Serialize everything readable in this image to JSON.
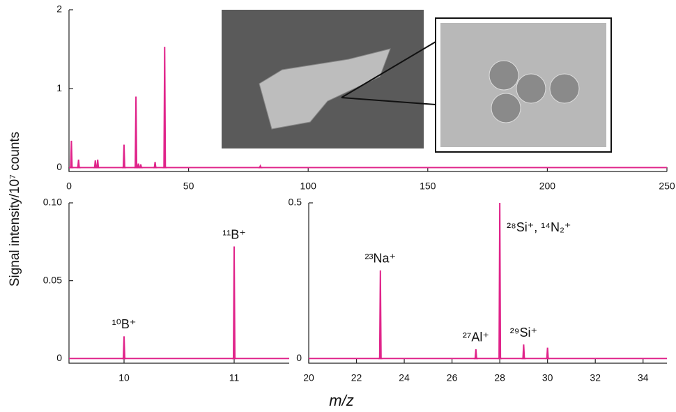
{
  "y_label": "Signal intensity/10⁷ counts",
  "x_label": "m/z",
  "chart_data": [
    {
      "type": "spectrum",
      "color": "#e0248a",
      "x": [
        1,
        4,
        11,
        12,
        23,
        28,
        29,
        30,
        36,
        40,
        80
      ],
      "values": [
        0.34,
        0.1,
        0.09,
        0.1,
        0.29,
        0.9,
        0.05,
        0.04,
        0.07,
        1.53,
        0.02
      ],
      "xlim": [
        0,
        250
      ],
      "xticks": [
        0,
        50,
        100,
        150,
        200,
        250
      ],
      "ylim": [
        -0.05,
        2
      ],
      "yticks": [
        0,
        1,
        2
      ]
    },
    {
      "type": "spectrum",
      "color": "#e0248a",
      "x": [
        10,
        11
      ],
      "values": [
        0.0143,
        0.072
      ],
      "peak_labels": [
        "¹⁰B⁺",
        "¹¹B⁺"
      ],
      "xlim": [
        9.5,
        11.5
      ],
      "xticks": [
        10,
        11
      ],
      "ylim": [
        -0.003,
        0.1
      ],
      "yticks": [
        0,
        0.05,
        {
          "value": 0.1,
          "label": "0.10"
        }
      ]
    },
    {
      "type": "spectrum",
      "color": "#e0248a",
      "x": [
        23,
        27,
        28,
        29,
        30
      ],
      "values": [
        0.283,
        0.03,
        0.5,
        0.045,
        0.035
      ],
      "peak_labels": [
        "²³Na⁺",
        "²⁷Al⁺",
        "²⁸Si⁺, ¹⁴N₂⁺",
        "²⁹Si⁺",
        null
      ],
      "xlim": [
        20,
        35
      ],
      "xticks": [
        20,
        22,
        24,
        26,
        28,
        30,
        32,
        34
      ],
      "ylim": [
        -0.015,
        0.5
      ],
      "yticks": [
        0,
        0.5
      ]
    }
  ]
}
